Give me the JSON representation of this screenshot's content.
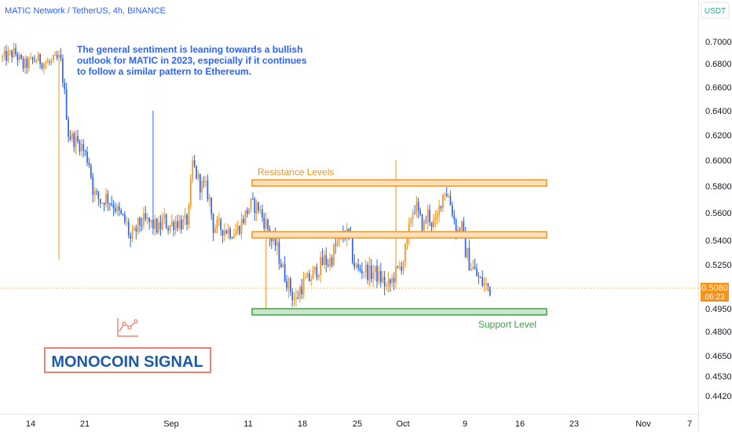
{
  "header": {
    "symbol_title": "MATIC Network / TetherUS, 4h, BINANCE",
    "currency_badge": "USDT"
  },
  "annotations": {
    "sentiment_lines": [
      "The general sentiment is leaning towards a bullish",
      "outlook for MATIC in 2023, especially if it continues",
      "to follow a similar pattern to Ethereum."
    ],
    "resistance_label": "Resistance Levels",
    "support_label": "Support Level",
    "brand_label": "MONOCOIN SIGNAL"
  },
  "price_tag": {
    "price": "0.5080",
    "countdown": "06:23"
  },
  "colors": {
    "up_candle": "#f7931a",
    "down_candle": "#2962ff",
    "resistance": "#f7931a",
    "resistance_fill": "#fde0b8",
    "support": "#43a047",
    "support_fill": "#c8e6c9",
    "title_blue": "#2962ff",
    "brand_blue": "#1e5aa8",
    "brand_border": "#f08070",
    "price_tag_bg": "#f7931a",
    "axis_text": "#131722",
    "usdt_green": "#26a69a"
  },
  "chart_data": {
    "type": "candlestick",
    "title": "MATIC Network / TetherUS, 4h, BINANCE",
    "y_unit": "USDT",
    "y_ticks": [
      0.7,
      0.68,
      0.66,
      0.64,
      0.62,
      0.6,
      0.58,
      0.56,
      0.54,
      0.525,
      0.508,
      0.495,
      0.48,
      0.465,
      0.453,
      0.442
    ],
    "y_tick_labels": [
      "0.7000",
      "0.6800",
      "0.6600",
      "0.6400",
      "0.6200",
      "0.6000",
      "0.5800",
      "0.5600",
      "0.5400",
      "0.5250",
      "0.5080",
      "0.4950",
      "0.4800",
      "0.4650",
      "0.4530",
      "0.4420"
    ],
    "y_scale": "log",
    "x_tick_labels": [
      "14",
      "21",
      "Sep",
      "11",
      "18",
      "25",
      "Oct",
      "9",
      "16",
      "23",
      "Nov",
      "7"
    ],
    "last_price": 0.508,
    "resistance_levels": [
      [
        0.5785,
        0.582
      ],
      [
        0.542,
        0.5455
      ]
    ],
    "support_level": [
      0.493,
      0.496
    ],
    "price_path": [
      [
        0,
        0.685
      ],
      [
        3,
        0.69
      ],
      [
        5,
        0.678
      ],
      [
        8,
        0.684
      ],
      [
        11,
        0.68
      ],
      [
        14,
        0.685
      ],
      [
        15,
        0.655
      ],
      [
        16,
        0.62
      ],
      [
        19,
        0.612
      ],
      [
        21,
        0.598
      ],
      [
        22,
        0.575
      ],
      [
        24,
        0.568
      ],
      [
        25,
        0.572
      ],
      [
        27,
        0.566
      ],
      [
        28,
        0.56
      ],
      [
        30,
        0.552
      ],
      [
        31,
        0.54
      ],
      [
        32,
        0.545
      ],
      [
        33,
        0.552
      ],
      [
        34,
        0.554
      ],
      [
        36,
        0.552
      ],
      [
        38,
        0.548
      ],
      [
        39,
        0.556
      ],
      [
        40,
        0.55
      ],
      [
        42,
        0.554
      ],
      [
        44,
        0.552
      ],
      [
        45,
        0.556
      ],
      [
        46,
        0.598
      ],
      [
        47,
        0.588
      ],
      [
        48,
        0.58
      ],
      [
        49,
        0.58
      ],
      [
        50,
        0.572
      ],
      [
        51,
        0.55
      ],
      [
        52,
        0.55
      ],
      [
        54,
        0.548
      ],
      [
        56,
        0.546
      ],
      [
        57,
        0.548
      ],
      [
        58,
        0.554
      ],
      [
        59,
        0.56
      ],
      [
        60,
        0.566
      ],
      [
        62,
        0.564
      ],
      [
        63,
        0.556
      ],
      [
        64,
        0.551
      ],
      [
        65,
        0.54
      ],
      [
        66,
        0.538
      ],
      [
        67,
        0.53
      ],
      [
        68,
        0.52
      ],
      [
        69,
        0.512
      ],
      [
        70,
        0.505
      ],
      [
        71,
        0.499
      ],
      [
        72,
        0.508
      ],
      [
        73,
        0.512
      ],
      [
        74,
        0.514
      ],
      [
        75,
        0.517
      ],
      [
        76,
        0.521
      ],
      [
        77,
        0.524
      ],
      [
        78,
        0.528
      ],
      [
        79,
        0.526
      ],
      [
        80,
        0.532
      ],
      [
        81,
        0.538
      ],
      [
        82,
        0.542
      ],
      [
        83,
        0.545
      ],
      [
        84,
        0.542
      ],
      [
        85,
        0.526
      ],
      [
        86,
        0.521
      ],
      [
        87,
        0.522
      ],
      [
        88,
        0.521
      ],
      [
        89,
        0.518
      ],
      [
        90,
        0.52
      ],
      [
        91,
        0.516
      ],
      [
        92,
        0.514
      ],
      [
        93,
        0.508
      ],
      [
        94,
        0.512
      ],
      [
        95,
        0.518
      ],
      [
        96,
        0.522
      ],
      [
        97,
        0.528
      ],
      [
        98,
        0.538
      ],
      [
        99,
        0.56
      ],
      [
        100,
        0.566
      ],
      [
        101,
        0.555
      ],
      [
        102,
        0.55
      ],
      [
        103,
        0.56
      ],
      [
        104,
        0.552
      ],
      [
        105,
        0.552
      ],
      [
        106,
        0.568
      ],
      [
        107,
        0.578
      ],
      [
        108,
        0.572
      ],
      [
        109,
        0.56
      ],
      [
        110,
        0.545
      ],
      [
        111,
        0.552
      ],
      [
        112,
        0.535
      ],
      [
        113,
        0.526
      ],
      [
        114,
        0.522
      ],
      [
        115,
        0.516
      ],
      [
        116,
        0.512
      ],
      [
        117,
        0.51
      ],
      [
        118,
        0.508
      ]
    ]
  }
}
